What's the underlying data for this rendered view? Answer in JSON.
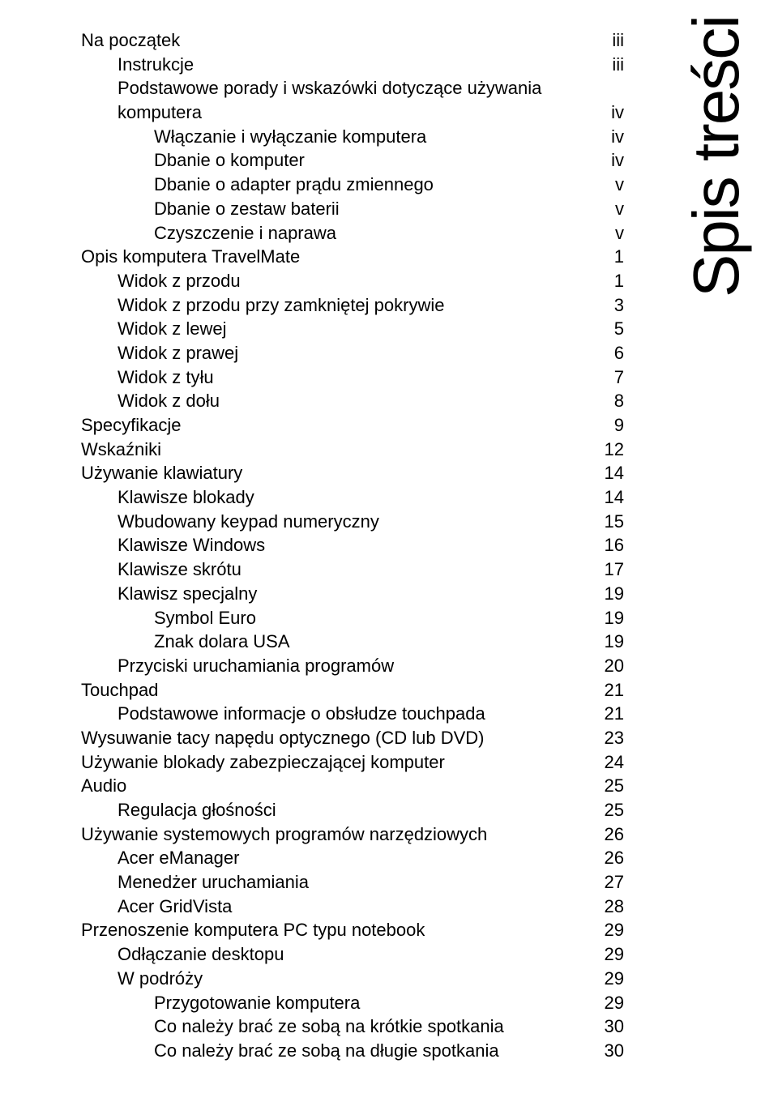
{
  "side_title": "Spis treści",
  "font_color": "#000000",
  "background": "#ffffff",
  "toc": [
    {
      "label": "Na początek",
      "page": "iii",
      "level": 0
    },
    {
      "label": "Instrukcje",
      "page": "iii",
      "level": 1
    },
    {
      "label": "Podstawowe porady i wskazówki dotyczące używania",
      "page": "",
      "level": 1
    },
    {
      "label": "komputera",
      "page": "iv",
      "level": 1
    },
    {
      "label": "Włączanie i wyłączanie komputera",
      "page": "iv",
      "level": 2
    },
    {
      "label": "Dbanie o komputer",
      "page": "iv",
      "level": 2
    },
    {
      "label": "Dbanie o adapter prądu zmiennego",
      "page": "v",
      "level": 2
    },
    {
      "label": "Dbanie o zestaw baterii",
      "page": "v",
      "level": 2
    },
    {
      "label": "Czyszczenie i naprawa",
      "page": "v",
      "level": 2
    },
    {
      "label": "Opis komputera TravelMate",
      "page": "1",
      "level": 0
    },
    {
      "label": "Widok z przodu",
      "page": "1",
      "level": 1
    },
    {
      "label": "Widok z przodu przy zamkniętej pokrywie",
      "page": "3",
      "level": 1
    },
    {
      "label": "Widok z lewej",
      "page": "5",
      "level": 1
    },
    {
      "label": "Widok z prawej",
      "page": "6",
      "level": 1
    },
    {
      "label": "Widok z tyłu",
      "page": "7",
      "level": 1
    },
    {
      "label": "Widok z dołu",
      "page": "8",
      "level": 1
    },
    {
      "label": "Specyfikacje",
      "page": "9",
      "level": 0
    },
    {
      "label": "Wskaźniki",
      "page": "12",
      "level": 0
    },
    {
      "label": "Używanie klawiatury",
      "page": "14",
      "level": 0
    },
    {
      "label": "Klawisze blokady",
      "page": "14",
      "level": 1
    },
    {
      "label": "Wbudowany keypad numeryczny",
      "page": "15",
      "level": 1
    },
    {
      "label": "Klawisze Windows",
      "page": "16",
      "level": 1
    },
    {
      "label": "Klawisze skrótu",
      "page": "17",
      "level": 1
    },
    {
      "label": "Klawisz specjalny",
      "page": "19",
      "level": 1
    },
    {
      "label": "Symbol Euro",
      "page": "19",
      "level": 2
    },
    {
      "label": "Znak dolara USA",
      "page": "19",
      "level": 2
    },
    {
      "label": "Przyciski uruchamiania programów",
      "page": "20",
      "level": 1
    },
    {
      "label": "Touchpad",
      "page": "21",
      "level": 0
    },
    {
      "label": "Podstawowe informacje o obsłudze touchpada",
      "page": "21",
      "level": 1
    },
    {
      "label": "Wysuwanie tacy napędu optycznego (CD lub DVD)",
      "page": "23",
      "level": 0
    },
    {
      "label": "Używanie blokady zabezpieczającej komputer",
      "page": "24",
      "level": 0
    },
    {
      "label": "Audio",
      "page": "25",
      "level": 0
    },
    {
      "label": "Regulacja głośności",
      "page": "25",
      "level": 1
    },
    {
      "label": "Używanie systemowych programów narzędziowych",
      "page": "26",
      "level": 0
    },
    {
      "label": "Acer eManager",
      "page": "26",
      "level": 1
    },
    {
      "label": "Menedżer uruchamiania",
      "page": "27",
      "level": 1
    },
    {
      "label": "Acer GridVista",
      "page": "28",
      "level": 1
    },
    {
      "label": "Przenoszenie komputera PC typu notebook",
      "page": "29",
      "level": 0
    },
    {
      "label": "Odłączanie desktopu",
      "page": "29",
      "level": 1
    },
    {
      "label": "W podróży",
      "page": "29",
      "level": 1
    },
    {
      "label": "Przygotowanie komputera",
      "page": "29",
      "level": 2
    },
    {
      "label": "Co należy brać ze sobą na krótkie spotkania",
      "page": "30",
      "level": 2
    },
    {
      "label": "Co należy brać ze sobą na długie spotkania",
      "page": "30",
      "level": 2
    }
  ]
}
